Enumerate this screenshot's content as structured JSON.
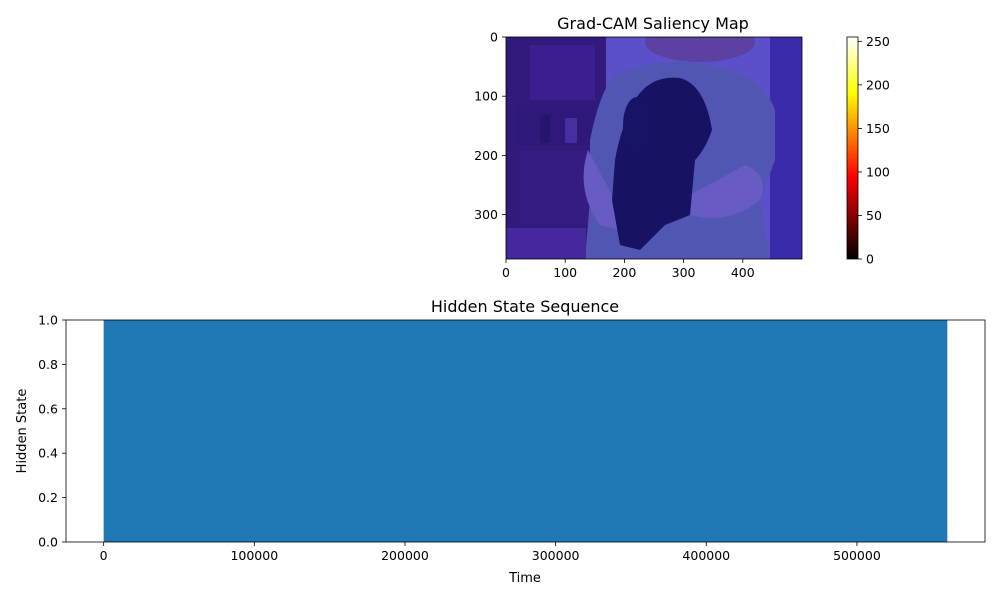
{
  "chart_data": [
    {
      "type": "heatmap",
      "title": "Grad-CAM Saliency Map",
      "x_ticks": [
        0,
        100,
        200,
        300,
        400
      ],
      "y_ticks": [
        0,
        100,
        200,
        300
      ],
      "xlim": [
        0,
        500
      ],
      "ylim": [
        375,
        0
      ],
      "image_description": "photo of a person in a green shirt holding a black puppy, with a uniform blue/purple overlay",
      "overlay_color": "#3a2fd0",
      "colorbar": {
        "colormap": "hot",
        "range": [
          0,
          255
        ],
        "ticks": [
          0,
          50,
          100,
          150,
          200,
          250
        ]
      }
    },
    {
      "type": "area",
      "title": "Hidden State Sequence",
      "xlabel": "Time",
      "ylabel": "Hidden State",
      "xlim": [
        -25000,
        585000
      ],
      "ylim": [
        0,
        1
      ],
      "x_ticks": [
        0,
        100000,
        200000,
        300000,
        400000,
        500000
      ],
      "y_ticks": [
        "0.0",
        "0.2",
        "0.4",
        "0.6",
        "0.8",
        "1.0"
      ],
      "x": [
        0,
        560000
      ],
      "values": [
        1,
        1
      ],
      "color": "#1f77b4"
    }
  ]
}
